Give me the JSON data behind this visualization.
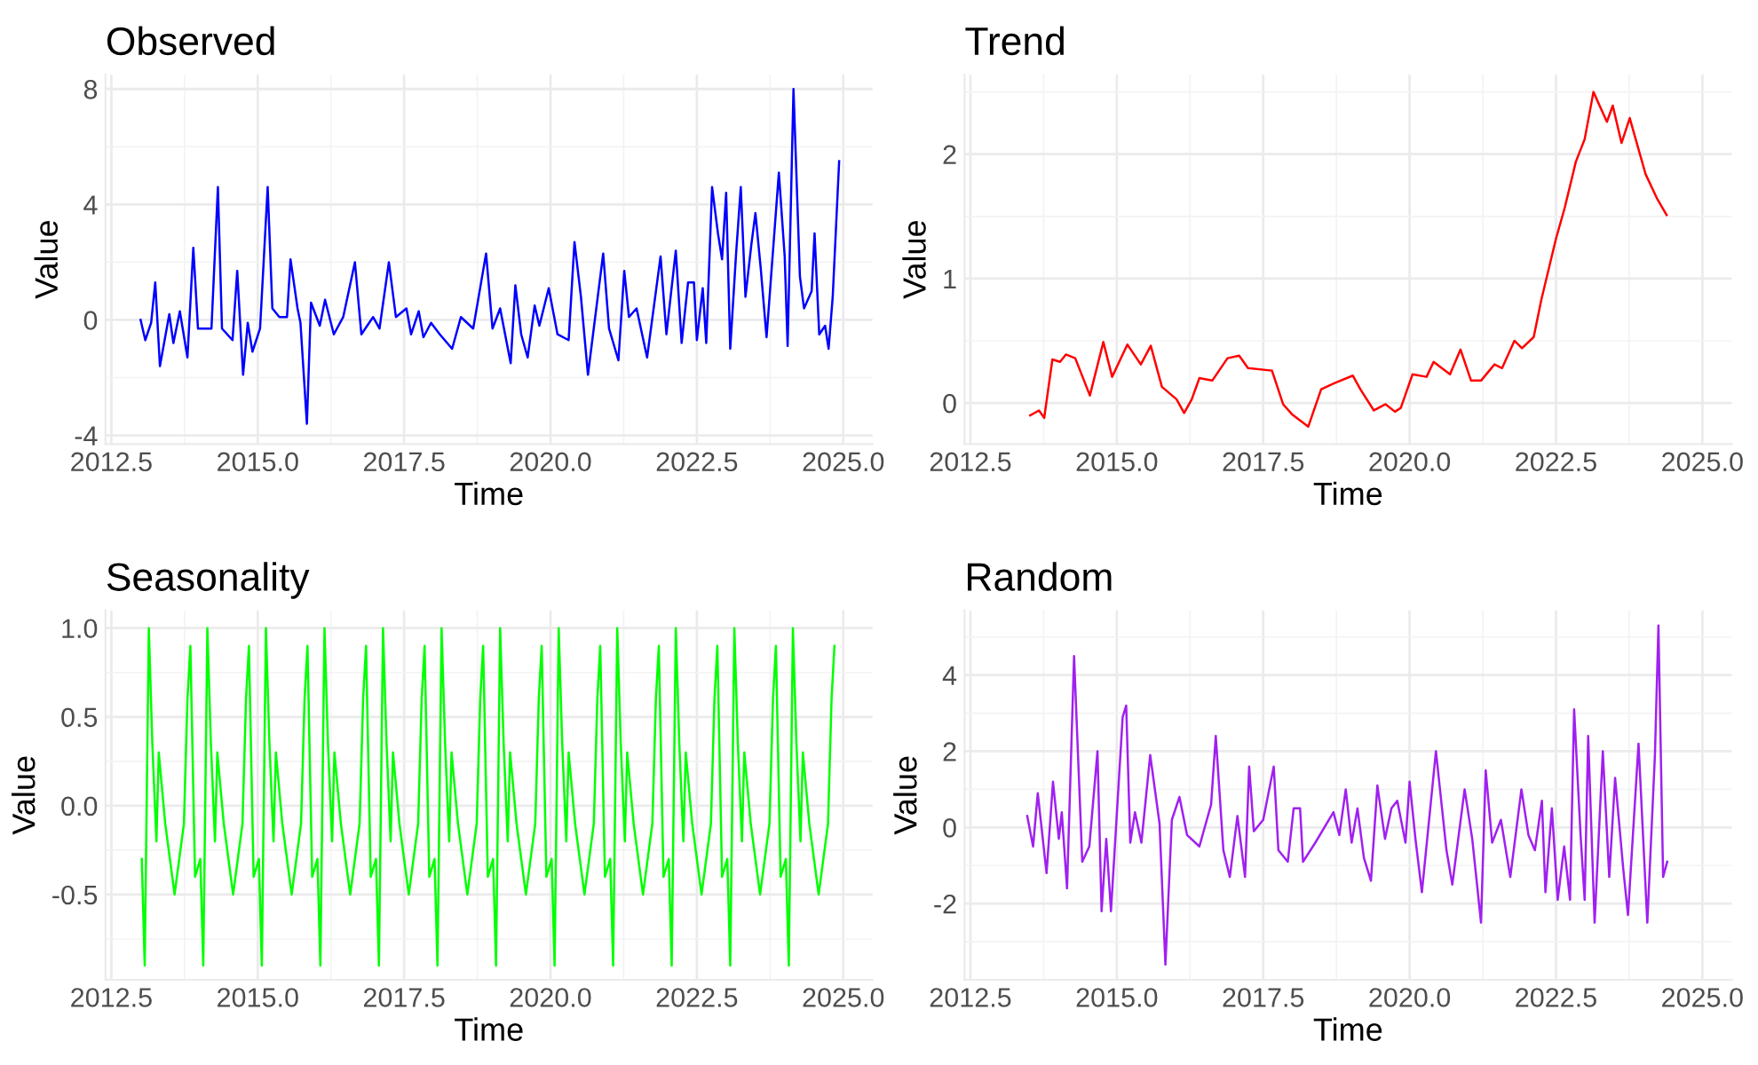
{
  "chart_data": [
    {
      "type": "line",
      "title": "Observed",
      "xlabel": "Time",
      "ylabel": "Value",
      "color": "#0000ff",
      "grid": true,
      "xlim": [
        2012.4,
        2025.5
      ],
      "ylim": [
        -4.3,
        8.5
      ],
      "xticks": [
        {
          "value": 2012.5,
          "label": "2012.5"
        },
        {
          "value": 2015,
          "label": "2015.0"
        },
        {
          "value": 2017.5,
          "label": "2017.5"
        },
        {
          "value": 2020,
          "label": "2020.0"
        },
        {
          "value": 2022.5,
          "label": "2022.5"
        },
        {
          "value": 2025,
          "label": "2025.0"
        }
      ],
      "yticks": [
        -4,
        0,
        4,
        8
      ],
      "x": [
        2013.0,
        2013.08,
        2013.18,
        2013.25,
        2013.33,
        2013.41,
        2013.49,
        2013.56,
        2013.67,
        2013.8,
        2013.9,
        2013.98,
        2014.13,
        2014.21,
        2014.32,
        2014.39,
        2014.57,
        2014.65,
        2014.75,
        2014.83,
        2014.91,
        2015.04,
        2015.17,
        2015.25,
        2015.37,
        2015.5,
        2015.56,
        2015.68,
        2015.73,
        2015.84,
        2015.91,
        2016.06,
        2016.15,
        2016.3,
        2016.46,
        2016.66,
        2016.77,
        2016.97,
        2017.08,
        2017.24,
        2017.36,
        2017.54,
        2017.62,
        2017.75,
        2017.83,
        2017.96,
        2018.11,
        2018.32,
        2018.47,
        2018.68,
        2018.9,
        2019.01,
        2019.14,
        2019.32,
        2019.4,
        2019.5,
        2019.61,
        2019.73,
        2019.81,
        2019.97,
        2020.12,
        2020.31,
        2020.41,
        2020.52,
        2020.64,
        2020.9,
        2021.0,
        2021.16,
        2021.26,
        2021.34,
        2021.47,
        2021.65,
        2021.88,
        2021.98,
        2022.14,
        2022.24,
        2022.35,
        2022.45,
        2022.5,
        2022.6,
        2022.66,
        2022.76,
        2022.86,
        2022.93,
        2023.0,
        2023.07,
        2023.17,
        2023.25,
        2023.33,
        2023.43,
        2023.5,
        2023.59,
        2023.69,
        2023.9,
        2024.0,
        2024.05,
        2024.15,
        2024.26,
        2024.33,
        2024.46,
        2024.51,
        2024.59,
        2024.69,
        2024.75,
        2024.82,
        2024.93
      ],
      "values": [
        0,
        -0.7,
        -0.1,
        1.3,
        -1.6,
        -0.7,
        0.2,
        -0.8,
        0.3,
        -1.3,
        2.5,
        -0.3,
        -0.3,
        -0.3,
        4.6,
        -0.3,
        -0.7,
        1.7,
        -1.9,
        -0.1,
        -1.1,
        -0.3,
        4.6,
        0.4,
        0.1,
        0.1,
        2.1,
        0.4,
        -0.1,
        -3.6,
        0.6,
        -0.2,
        0.7,
        -0.5,
        0.1,
        2.0,
        -0.5,
        0.1,
        -0.3,
        2.0,
        0.1,
        0.4,
        -0.5,
        0.3,
        -0.6,
        -0.1,
        -0.5,
        -1.0,
        0.1,
        -0.3,
        2.3,
        -0.3,
        0.4,
        -1.5,
        1.2,
        -0.5,
        -1.3,
        0.5,
        -0.2,
        1.1,
        -0.5,
        -0.7,
        2.7,
        0.8,
        -1.9,
        2.3,
        -0.3,
        -1.4,
        1.7,
        0.1,
        0.4,
        -1.3,
        2.2,
        -0.5,
        2.4,
        -0.8,
        1.3,
        1.3,
        -0.7,
        1.1,
        -0.8,
        4.6,
        3.0,
        2.1,
        4.4,
        -1.0,
        2.3,
        4.6,
        0.8,
        2.6,
        3.7,
        1.8,
        -0.6,
        5.1,
        2.2,
        -0.9,
        8.0,
        1.5,
        0.4,
        1.0,
        3.0,
        -0.5,
        -0.2,
        -1.0,
        0.8,
        5.5
      ]
    },
    {
      "type": "line",
      "title": "Trend",
      "xlabel": "Time",
      "ylabel": "Value",
      "color": "#ff0000",
      "grid": true,
      "xlim": [
        2012.4,
        2025.5
      ],
      "ylim": [
        -0.33,
        2.64
      ],
      "xticks": [
        {
          "value": 2012.5,
          "label": "2012.5"
        },
        {
          "value": 2015,
          "label": "2015.0"
        },
        {
          "value": 2017.5,
          "label": "2017.5"
        },
        {
          "value": 2020,
          "label": "2020.0"
        },
        {
          "value": 2022.5,
          "label": "2022.5"
        },
        {
          "value": 2025,
          "label": "2025.0"
        }
      ],
      "yticks": [
        0,
        1,
        2
      ],
      "x": [
        2013.52,
        2013.67,
        2013.76,
        2013.9,
        2014.03,
        2014.13,
        2014.29,
        2014.54,
        2014.77,
        2014.92,
        2015.18,
        2015.41,
        2015.58,
        2015.77,
        2016.02,
        2016.15,
        2016.28,
        2016.41,
        2016.63,
        2016.89,
        2017.09,
        2017.24,
        2017.65,
        2017.84,
        2017.99,
        2018.27,
        2018.49,
        2018.72,
        2019.03,
        2019.16,
        2019.39,
        2019.59,
        2019.75,
        2019.85,
        2020.05,
        2020.29,
        2020.41,
        2020.69,
        2020.87,
        2021.05,
        2021.22,
        2021.45,
        2021.58,
        2021.79,
        2021.92,
        2022.12,
        2022.25,
        2022.5,
        2022.65,
        2022.84,
        2022.99,
        2023.14,
        2023.37,
        2023.47,
        2023.62,
        2023.76,
        2024.03,
        2024.23,
        2024.39
      ],
      "values": [
        -0.1,
        -0.06,
        -0.12,
        0.35,
        0.33,
        0.39,
        0.36,
        0.06,
        0.49,
        0.21,
        0.47,
        0.31,
        0.46,
        0.13,
        0.03,
        -0.08,
        0.03,
        0.2,
        0.18,
        0.36,
        0.38,
        0.28,
        0.26,
        -0.01,
        -0.09,
        -0.19,
        0.11,
        0.16,
        0.22,
        0.11,
        -0.06,
        -0.01,
        -0.07,
        -0.04,
        0.23,
        0.21,
        0.33,
        0.23,
        0.43,
        0.18,
        0.18,
        0.31,
        0.28,
        0.5,
        0.44,
        0.53,
        0.83,
        1.32,
        1.57,
        1.94,
        2.12,
        2.5,
        2.26,
        2.39,
        2.09,
        2.29,
        1.84,
        1.64,
        1.51
      ]
    },
    {
      "type": "line",
      "title": "Seasonality",
      "xlabel": "Time",
      "ylabel": "Value",
      "color": "#00ff00",
      "grid": true,
      "xlim": [
        2012.4,
        2025.5
      ],
      "ylim": [
        -0.98,
        1.1
      ],
      "xticks": [
        {
          "value": 2012.5,
          "label": "2012.5"
        },
        {
          "value": 2015,
          "label": "2015.0"
        },
        {
          "value": 2017.5,
          "label": "2017.5"
        },
        {
          "value": 2020,
          "label": "2020.0"
        },
        {
          "value": 2022.5,
          "label": "2022.5"
        },
        {
          "value": 2025,
          "label": "2025.0"
        }
      ],
      "yticks": [
        {
          "value": -0.5,
          "label": "-0.5"
        },
        {
          "value": 0,
          "label": "0.0"
        },
        {
          "value": 0.5,
          "label": "0.5"
        },
        {
          "value": 1,
          "label": "1.0"
        }
      ],
      "x": [
        2013.02,
        2013.07,
        2013.14,
        2013.2,
        2013.27,
        2013.31,
        2013.42,
        2013.58,
        2013.74,
        2013.8,
        2013.85,
        2013.93,
        2014.02,
        2014.07,
        2014.14,
        2014.2,
        2014.27,
        2014.31,
        2014.42,
        2014.58,
        2014.74,
        2014.8,
        2014.85,
        2014.93,
        2015.02,
        2015.07,
        2015.14,
        2015.2,
        2015.27,
        2015.31,
        2015.42,
        2015.58,
        2015.74,
        2015.8,
        2015.85,
        2015.93,
        2016.02,
        2016.07,
        2016.14,
        2016.2,
        2016.27,
        2016.31,
        2016.42,
        2016.58,
        2016.74,
        2016.8,
        2016.85,
        2016.93,
        2017.02,
        2017.07,
        2017.14,
        2017.2,
        2017.27,
        2017.31,
        2017.42,
        2017.58,
        2017.74,
        2017.8,
        2017.85,
        2017.93,
        2018.02,
        2018.07,
        2018.14,
        2018.2,
        2018.27,
        2018.31,
        2018.42,
        2018.58,
        2018.74,
        2018.8,
        2018.85,
        2018.93,
        2019.02,
        2019.07,
        2019.14,
        2019.2,
        2019.27,
        2019.31,
        2019.42,
        2019.58,
        2019.74,
        2019.8,
        2019.85,
        2019.93,
        2020.02,
        2020.07,
        2020.14,
        2020.2,
        2020.27,
        2020.31,
        2020.42,
        2020.58,
        2020.74,
        2020.8,
        2020.85,
        2020.93,
        2021.02,
        2021.07,
        2021.14,
        2021.2,
        2021.27,
        2021.31,
        2021.42,
        2021.58,
        2021.74,
        2021.8,
        2021.85,
        2021.93,
        2022.02,
        2022.07,
        2022.14,
        2022.2,
        2022.27,
        2022.31,
        2022.42,
        2022.58,
        2022.74,
        2022.8,
        2022.85,
        2022.93,
        2023.02,
        2023.07,
        2023.14,
        2023.2,
        2023.27,
        2023.31,
        2023.42,
        2023.58,
        2023.74,
        2023.8,
        2023.85,
        2023.93,
        2024.02,
        2024.07,
        2024.14,
        2024.2,
        2024.27,
        2024.31,
        2024.42,
        2024.58,
        2024.74,
        2024.8,
        2024.85
      ],
      "values": [
        -0.3,
        -0.9,
        1.0,
        0.35,
        -0.2,
        0.3,
        -0.1,
        -0.5,
        -0.1,
        0.6,
        0.9,
        -0.4,
        -0.3,
        -0.9,
        1.0,
        0.35,
        -0.2,
        0.3,
        -0.1,
        -0.5,
        -0.1,
        0.6,
        0.9,
        -0.4,
        -0.3,
        -0.9,
        1.0,
        0.35,
        -0.2,
        0.3,
        -0.1,
        -0.5,
        -0.1,
        0.6,
        0.9,
        -0.4,
        -0.3,
        -0.9,
        1.0,
        0.35,
        -0.2,
        0.3,
        -0.1,
        -0.5,
        -0.1,
        0.6,
        0.9,
        -0.4,
        -0.3,
        -0.9,
        1.0,
        0.35,
        -0.2,
        0.3,
        -0.1,
        -0.5,
        -0.1,
        0.6,
        0.9,
        -0.4,
        -0.3,
        -0.9,
        1.0,
        0.35,
        -0.2,
        0.3,
        -0.1,
        -0.5,
        -0.1,
        0.6,
        0.9,
        -0.4,
        -0.3,
        -0.9,
        1.0,
        0.35,
        -0.2,
        0.3,
        -0.1,
        -0.5,
        -0.1,
        0.6,
        0.9,
        -0.4,
        -0.3,
        -0.9,
        1.0,
        0.35,
        -0.2,
        0.3,
        -0.1,
        -0.5,
        -0.1,
        0.6,
        0.9,
        -0.4,
        -0.3,
        -0.9,
        1.0,
        0.35,
        -0.2,
        0.3,
        -0.1,
        -0.5,
        -0.1,
        0.6,
        0.9,
        -0.4,
        -0.3,
        -0.9,
        1.0,
        0.35,
        -0.2,
        0.3,
        -0.1,
        -0.5,
        -0.1,
        0.6,
        0.9,
        -0.4,
        -0.3,
        -0.9,
        1.0,
        0.35,
        -0.2,
        0.3,
        -0.1,
        -0.5,
        -0.1,
        0.6,
        0.9,
        -0.4,
        -0.3,
        -0.9,
        1.0,
        0.35,
        -0.2,
        0.3,
        -0.1,
        -0.5,
        -0.1,
        0.6,
        0.9
      ]
    },
    {
      "type": "line",
      "title": "Random",
      "xlabel": "Time",
      "ylabel": "Value",
      "color": "#a020f0",
      "grid": true,
      "xlim": [
        2012.4,
        2025.5
      ],
      "ylim": [
        -4.0,
        5.7
      ],
      "xticks": [
        {
          "value": 2012.5,
          "label": "2012.5"
        },
        {
          "value": 2015,
          "label": "2015.0"
        },
        {
          "value": 2017.5,
          "label": "2017.5"
        },
        {
          "value": 2020,
          "label": "2020.0"
        },
        {
          "value": 2022.5,
          "label": "2022.5"
        },
        {
          "value": 2025,
          "label": "2025.0"
        }
      ],
      "yticks": [
        -2,
        0,
        2,
        4
      ],
      "x": [
        2013.47,
        2013.57,
        2013.65,
        2013.8,
        2013.91,
        2014.01,
        2014.06,
        2014.15,
        2014.27,
        2014.41,
        2014.53,
        2014.67,
        2014.74,
        2014.82,
        2014.9,
        2015.1,
        2015.16,
        2015.23,
        2015.31,
        2015.42,
        2015.57,
        2015.73,
        2015.83,
        2015.94,
        2016.07,
        2016.2,
        2016.41,
        2016.61,
        2016.69,
        2016.82,
        2016.93,
        2017.06,
        2017.19,
        2017.26,
        2017.34,
        2017.5,
        2017.68,
        2017.76,
        2017.92,
        2018.02,
        2018.13,
        2018.18,
        2018.39,
        2018.7,
        2018.8,
        2018.91,
        2019.01,
        2019.11,
        2019.22,
        2019.34,
        2019.45,
        2019.58,
        2019.69,
        2019.79,
        2019.93,
        2020.0,
        2020.1,
        2020.21,
        2020.45,
        2020.63,
        2020.73,
        2020.94,
        2021.07,
        2021.22,
        2021.3,
        2021.41,
        2021.56,
        2021.72,
        2021.91,
        2022.03,
        2022.14,
        2022.26,
        2022.32,
        2022.43,
        2022.53,
        2022.64,
        2022.74,
        2022.81,
        2022.92,
        2022.99,
        2023.05,
        2023.16,
        2023.3,
        2023.41,
        2023.51,
        2023.65,
        2023.73,
        2023.91,
        2024.06,
        2024.19,
        2024.25,
        2024.33,
        2024.4
      ],
      "values": [
        0.3,
        -0.5,
        0.9,
        -1.2,
        1.2,
        -0.3,
        0.4,
        -1.6,
        4.5,
        -0.9,
        -0.5,
        2.0,
        -2.2,
        -0.3,
        -2.2,
        2.9,
        3.2,
        -0.4,
        0.4,
        -0.4,
        1.9,
        0.1,
        -3.6,
        0.2,
        0.8,
        -0.2,
        -0.5,
        0.6,
        2.4,
        -0.6,
        -1.3,
        0.3,
        -1.3,
        1.6,
        -0.1,
        0.2,
        1.6,
        -0.6,
        -0.9,
        0.5,
        0.5,
        -0.9,
        -0.4,
        0.4,
        -0.2,
        1.0,
        -0.4,
        0.5,
        -0.8,
        -1.4,
        1.1,
        -0.3,
        0.5,
        0.7,
        -0.4,
        1.2,
        -0.3,
        -1.7,
        2.0,
        -0.6,
        -1.5,
        1.0,
        -0.3,
        -2.5,
        1.5,
        -0.4,
        0.2,
        -1.3,
        1.0,
        -0.2,
        -0.6,
        0.7,
        -1.7,
        0.5,
        -1.9,
        -0.5,
        -1.9,
        3.1,
        -0.2,
        -1.9,
        2.4,
        -2.5,
        2.0,
        -1.3,
        1.3,
        -1.1,
        -2.3,
        2.2,
        -2.5,
        1.9,
        5.3,
        -1.3,
        -0.9
      ]
    }
  ]
}
